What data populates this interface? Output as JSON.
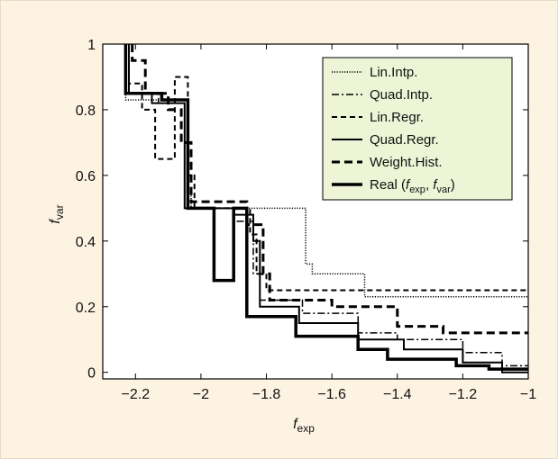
{
  "chart_data": {
    "type": "line",
    "xlabel": {
      "main": "f",
      "sub": "exp"
    },
    "ylabel": {
      "main": "f",
      "sub": "var"
    },
    "xlim": [
      -2.3,
      -1.0
    ],
    "ylim": [
      -0.02,
      1.0
    ],
    "xticks": [
      -2.2,
      -2.0,
      -1.8,
      -1.6,
      -1.4,
      -1.2,
      -1.0
    ],
    "xtick_labels": [
      "−2.2",
      "−2",
      "−1.8",
      "−1.6",
      "−1.4",
      "−1.2",
      "−1"
    ],
    "yticks": [
      0,
      0.2,
      0.4,
      0.6,
      0.8,
      1.0
    ],
    "ytick_labels": [
      "0",
      "0.2",
      "0.4",
      "0.6",
      "0.8",
      "1"
    ],
    "grid": false,
    "legend": "top-right",
    "series": [
      {
        "name": "Lin.Intp.",
        "style": "dotted",
        "width": 1.5,
        "color": "#000000",
        "points": [
          [
            -2.23,
            1.0
          ],
          [
            -2.23,
            0.83
          ],
          [
            -2.12,
            0.83
          ],
          [
            -2.12,
            0.83
          ],
          [
            -2.04,
            0.83
          ],
          [
            -2.04,
            0.55
          ],
          [
            -2.03,
            0.55
          ],
          [
            -2.03,
            0.5
          ],
          [
            -1.68,
            0.5
          ],
          [
            -1.68,
            0.33
          ],
          [
            -1.66,
            0.33
          ],
          [
            -1.66,
            0.3
          ],
          [
            -1.5,
            0.3
          ],
          [
            -1.5,
            0.23
          ],
          [
            -1.0,
            0.23
          ]
        ]
      },
      {
        "name": "Quad.Intp.",
        "style": "dashdot",
        "width": 1.5,
        "color": "#000000",
        "points": [
          [
            -2.23,
            1.0
          ],
          [
            -2.23,
            0.85
          ],
          [
            -2.13,
            0.85
          ],
          [
            -2.13,
            0.82
          ],
          [
            -2.05,
            0.82
          ],
          [
            -2.05,
            0.5
          ],
          [
            -1.9,
            0.5
          ],
          [
            -1.9,
            0.46
          ],
          [
            -1.84,
            0.46
          ],
          [
            -1.84,
            0.3
          ],
          [
            -1.82,
            0.3
          ],
          [
            -1.82,
            0.22
          ],
          [
            -1.69,
            0.22
          ],
          [
            -1.69,
            0.18
          ],
          [
            -1.52,
            0.18
          ],
          [
            -1.52,
            0.12
          ],
          [
            -1.4,
            0.12
          ],
          [
            -1.4,
            0.1
          ],
          [
            -1.2,
            0.1
          ],
          [
            -1.2,
            0.06
          ],
          [
            -1.08,
            0.06
          ],
          [
            -1.08,
            0.02
          ],
          [
            -1.0,
            0.02
          ]
        ]
      },
      {
        "name": "Lin.Regr.",
        "style": "dashed",
        "width": 2,
        "color": "#000000",
        "points": [
          [
            -2.22,
            1.0
          ],
          [
            -2.22,
            0.88
          ],
          [
            -2.18,
            0.88
          ],
          [
            -2.18,
            0.8
          ],
          [
            -2.14,
            0.8
          ],
          [
            -2.14,
            0.65
          ],
          [
            -2.08,
            0.65
          ],
          [
            -2.08,
            0.9
          ],
          [
            -2.04,
            0.9
          ],
          [
            -2.04,
            0.6
          ],
          [
            -2.02,
            0.6
          ],
          [
            -2.02,
            0.5
          ],
          [
            -1.85,
            0.5
          ],
          [
            -1.85,
            0.42
          ],
          [
            -1.83,
            0.42
          ],
          [
            -1.83,
            0.3
          ],
          [
            -1.8,
            0.3
          ],
          [
            -1.8,
            0.25
          ],
          [
            -1.0,
            0.25
          ]
        ]
      },
      {
        "name": "Quad.Regr.",
        "style": "solid",
        "width": 2,
        "color": "#000000",
        "points": [
          [
            -2.22,
            1.0
          ],
          [
            -2.22,
            0.85
          ],
          [
            -2.15,
            0.85
          ],
          [
            -2.15,
            0.82
          ],
          [
            -2.05,
            0.82
          ],
          [
            -2.05,
            0.5
          ],
          [
            -1.9,
            0.5
          ],
          [
            -1.9,
            0.48
          ],
          [
            -1.84,
            0.48
          ],
          [
            -1.84,
            0.4
          ],
          [
            -1.82,
            0.4
          ],
          [
            -1.82,
            0.2
          ],
          [
            -1.7,
            0.2
          ],
          [
            -1.7,
            0.15
          ],
          [
            -1.52,
            0.15
          ],
          [
            -1.52,
            0.1
          ],
          [
            -1.38,
            0.1
          ],
          [
            -1.38,
            0.07
          ],
          [
            -1.2,
            0.07
          ],
          [
            -1.2,
            0.03
          ],
          [
            -1.08,
            0.03
          ],
          [
            -1.08,
            0.0
          ],
          [
            -1.0,
            0.0
          ]
        ]
      },
      {
        "name": "Weight.Hist.",
        "style": "dashed",
        "width": 3,
        "color": "#000000",
        "points": [
          [
            -2.21,
            1.0
          ],
          [
            -2.21,
            0.95
          ],
          [
            -2.17,
            0.95
          ],
          [
            -2.17,
            0.85
          ],
          [
            -2.1,
            0.85
          ],
          [
            -2.1,
            0.8
          ],
          [
            -2.06,
            0.8
          ],
          [
            -2.06,
            0.7
          ],
          [
            -2.03,
            0.7
          ],
          [
            -2.03,
            0.52
          ],
          [
            -1.86,
            0.52
          ],
          [
            -1.86,
            0.45
          ],
          [
            -1.81,
            0.45
          ],
          [
            -1.81,
            0.3
          ],
          [
            -1.79,
            0.3
          ],
          [
            -1.79,
            0.22
          ],
          [
            -1.6,
            0.22
          ],
          [
            -1.6,
            0.2
          ],
          [
            -1.4,
            0.2
          ],
          [
            -1.4,
            0.14
          ],
          [
            -1.26,
            0.14
          ],
          [
            -1.26,
            0.12
          ],
          [
            -1.0,
            0.12
          ]
        ]
      },
      {
        "name": "Real (f_exp, f_var)",
        "style": "solid",
        "width": 3.5,
        "color": "#000000",
        "points": [
          [
            -2.23,
            1.0
          ],
          [
            -2.23,
            0.85
          ],
          [
            -2.12,
            0.85
          ],
          [
            -2.12,
            0.83
          ],
          [
            -2.04,
            0.83
          ],
          [
            -2.04,
            0.5
          ],
          [
            -1.96,
            0.5
          ],
          [
            -1.96,
            0.28
          ],
          [
            -1.9,
            0.28
          ],
          [
            -1.9,
            0.5
          ],
          [
            -1.86,
            0.5
          ],
          [
            -1.86,
            0.17
          ],
          [
            -1.71,
            0.17
          ],
          [
            -1.71,
            0.11
          ],
          [
            -1.52,
            0.11
          ],
          [
            -1.52,
            0.07
          ],
          [
            -1.43,
            0.07
          ],
          [
            -1.43,
            0.04
          ],
          [
            -1.22,
            0.04
          ],
          [
            -1.22,
            0.02
          ],
          [
            -1.12,
            0.02
          ],
          [
            -1.12,
            0.01
          ],
          [
            -1.0,
            0.01
          ]
        ]
      }
    ],
    "legend_entries": [
      {
        "label": "Lin.Intp."
      },
      {
        "label": "Quad.Intp."
      },
      {
        "label": "Lin.Regr."
      },
      {
        "label": "Quad.Regr."
      },
      {
        "label": "Weight.Hist."
      },
      {
        "label_parts": [
          "Real (",
          "f",
          "exp",
          ", ",
          "f",
          "var",
          ")"
        ]
      }
    ],
    "colors": {
      "background": "#fdf3e3",
      "plot_area": "#ffffff",
      "legend_fill": "#edf5d6",
      "ink": "#000000"
    }
  }
}
